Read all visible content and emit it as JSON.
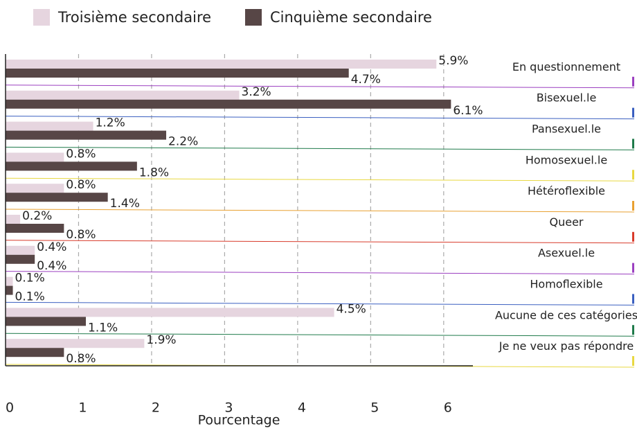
{
  "chart_data": {
    "type": "bar",
    "orientation": "horizontal",
    "categories": [
      "En questionnement",
      "Bisexuel.le",
      "Pansexuel.le",
      "Homosexuel.le",
      "Hétéroflexible",
      "Queer",
      "Asexuel.le",
      "Homoflexible",
      "Aucune de ces catégories",
      "Je ne veux pas répondre"
    ],
    "category_colors": [
      "#9b3fc0",
      "#3a5fc0",
      "#1e7a4a",
      "#e8d840",
      "#e8a030",
      "#d83a2a",
      "#9b3fc0",
      "#3a5fc0",
      "#1e7a4a",
      "#e8d840"
    ],
    "series": [
      {
        "name": "Troisième secondaire",
        "color": "#e6d5df",
        "values": [
          5.9,
          3.2,
          1.2,
          0.8,
          0.8,
          0.2,
          0.4,
          0.1,
          4.5,
          1.9
        ],
        "value_labels": [
          "5.9%",
          "3.2%",
          "1.2%",
          "0.8%",
          "0.8%",
          "0.2%",
          "0.4%",
          "0.1%",
          "4.5%",
          "1.9%"
        ]
      },
      {
        "name": "Cinquième secondaire",
        "color": "#574646",
        "values": [
          4.7,
          6.1,
          2.2,
          1.8,
          1.4,
          0.8,
          0.4,
          0.1,
          1.1,
          0.8
        ],
        "value_labels": [
          "4.7%",
          "6.1%",
          "2.2%",
          "1.8%",
          "1.4%",
          "0.8%",
          "0.4%",
          "0.1%",
          "1.1%",
          "0.8%"
        ]
      }
    ],
    "xlabel": "Pourcentage",
    "xlim": [
      0,
      6.4
    ],
    "xticks": [
      0,
      1,
      2,
      3,
      4,
      5,
      6
    ],
    "grid": true,
    "legend": "top"
  }
}
